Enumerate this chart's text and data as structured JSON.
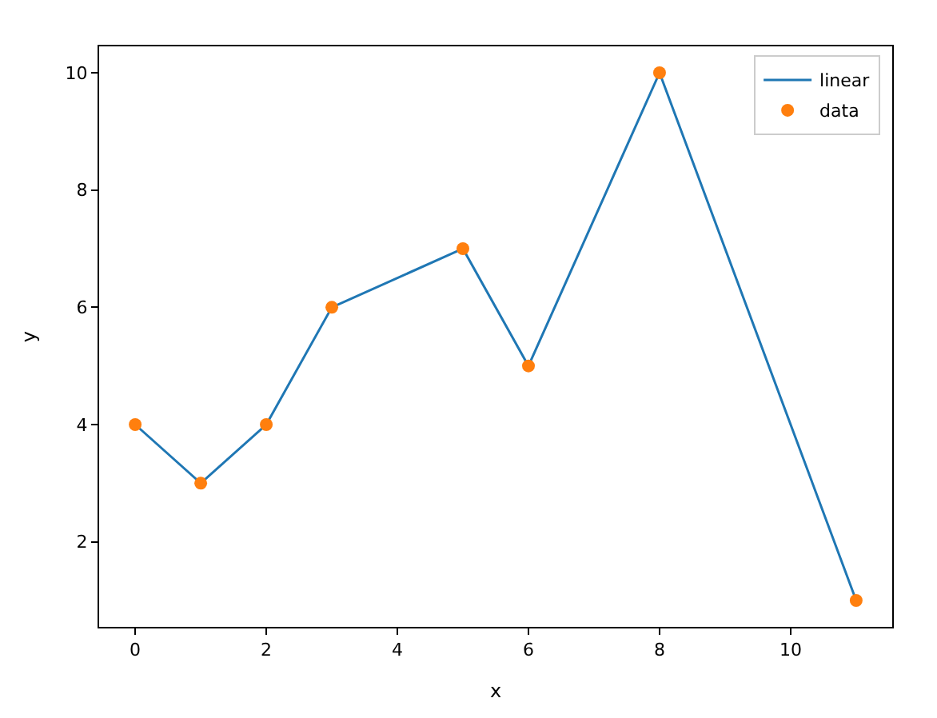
{
  "chart_data": {
    "type": "line",
    "xlabel": "x",
    "ylabel": "y",
    "x": [
      0,
      1,
      2,
      3,
      5,
      6,
      8,
      11
    ],
    "series": [
      {
        "name": "linear",
        "color": "#1f77b4",
        "values": [
          4,
          3,
          4,
          6,
          7,
          5,
          10,
          1
        ],
        "marker": "none",
        "line_style": "solid"
      },
      {
        "name": "data",
        "type": "scatter",
        "color": "#ff7f0e",
        "values": [
          4,
          3,
          4,
          6,
          7,
          5,
          10,
          1
        ],
        "marker": "circle"
      }
    ],
    "xlim": [
      -0.55,
      11.55
    ],
    "xticks": [
      0,
      2,
      4,
      6,
      8,
      10
    ],
    "ylim": [
      0.55,
      10.45
    ],
    "yticks": [
      2,
      4,
      6,
      8,
      10
    ],
    "legend": "top right"
  }
}
